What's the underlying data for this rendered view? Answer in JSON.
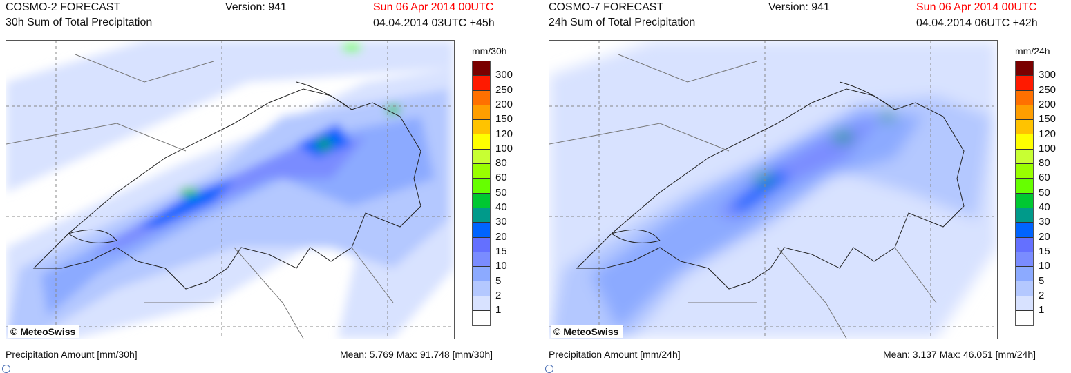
{
  "legend_colors": [
    "#7a0000",
    "#ff1a00",
    "#ff7000",
    "#ff9e00",
    "#ffc300",
    "#ffff00",
    "#c8ff33",
    "#99ff00",
    "#66ff00",
    "#00c832",
    "#009a8a",
    "#0064ff",
    "#6470ff",
    "#7a8cff",
    "#8caaff",
    "#b4c8ff",
    "#d8e2ff",
    "#ffffff"
  ],
  "legend_labels": [
    "300",
    "250",
    "200",
    "150",
    "120",
    "100",
    "80",
    "60",
    "50",
    "40",
    "30",
    "20",
    "15",
    "10",
    "5",
    "2",
    "1"
  ],
  "panels": [
    {
      "model": "COSMO-2 FORECAST",
      "product": "30h Sum of Total Precipitation",
      "version": "Version: 941",
      "valid": "Sun 06 Apr 2014 00UTC",
      "run": "04.04.2014 03UTC +45h",
      "unit": "mm/30h",
      "copyright": "© MeteoSwiss",
      "footer_left": "Precipitation Amount [mm/30h]",
      "footer_right": "Mean:   5.769 Max:  91.748 [mm/30h]"
    },
    {
      "model": "COSMO-7 FORECAST",
      "product": "24h Sum of Total Precipitation",
      "version": "Version: 941",
      "valid": "Sun 06 Apr 2014 00UTC",
      "run": "04.04.2014 06UTC +42h",
      "unit": "mm/24h",
      "copyright": "© MeteoSwiss",
      "footer_left": "Precipitation Amount [mm/24h]",
      "footer_right": "Mean:   3.137 Max:  46.051 [mm/24h]"
    }
  ]
}
